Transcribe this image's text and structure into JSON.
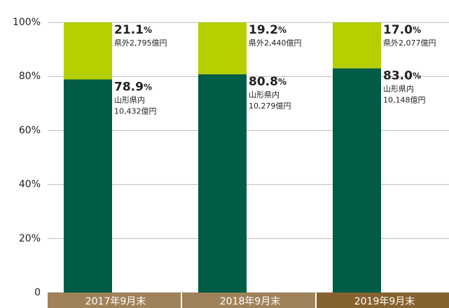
{
  "chart_data": {
    "type": "stacked_bar",
    "categories": [
      "2017年9月末",
      "2018年9月末",
      "2019年9月末"
    ],
    "series": [
      {
        "name": "山形県内",
        "color": "#005c45",
        "values": [
          78.9,
          80.8,
          83.0
        ],
        "value_labels": [
          "78.9%",
          "80.8%",
          "83.0%"
        ],
        "amounts": [
          10432,
          10279,
          10148
        ],
        "amount_labels": [
          "10,432億円",
          "10,279億円",
          "10,148億円"
        ]
      },
      {
        "name": "県外",
        "color": "#b5cf00",
        "values": [
          21.1,
          19.2,
          17.0
        ],
        "value_labels": [
          "21.1%",
          "19.2%",
          "17.0%"
        ],
        "amounts": [
          2795,
          2440,
          2077
        ],
        "amount_labels": [
          "2,795億円",
          "2,440億円",
          "2,077億円"
        ]
      }
    ],
    "ylim": [
      0,
      100
    ],
    "yticks": [
      0,
      {
        "value": 20,
        "label": "20%"
      },
      {
        "value": 40,
        "label": "40%"
      },
      {
        "value": 60,
        "label": "60%"
      },
      {
        "value": 80,
        "label": "80%"
      },
      {
        "value": 100,
        "label": "100%"
      }
    ],
    "grid": true
  }
}
